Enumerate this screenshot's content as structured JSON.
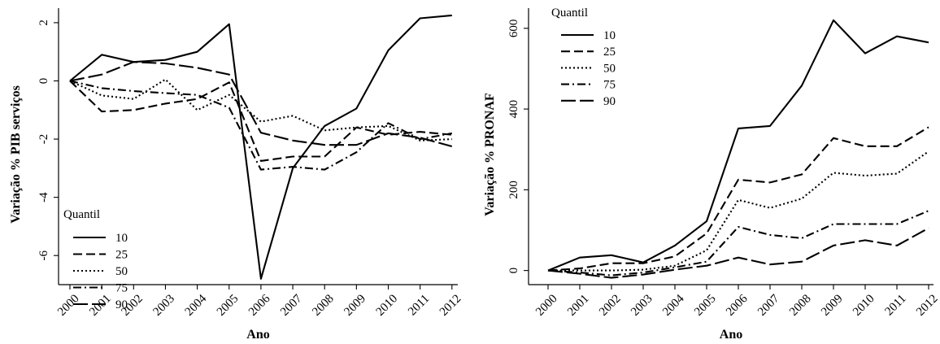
{
  "chart_data": [
    {
      "type": "line",
      "xlabel": "Ano",
      "ylabel": "Variação % PIB serviços",
      "x": [
        "2000",
        "2001",
        "2002",
        "2003",
        "2004",
        "2005",
        "2006",
        "2007",
        "2008",
        "2009",
        "2010",
        "2011",
        "2012"
      ],
      "yticks": [
        "-6",
        "-4",
        "-2",
        "0",
        "2"
      ],
      "ylim": [
        -7,
        2.5
      ],
      "legend": {
        "title": "Quantil",
        "position": "bottom-left"
      },
      "series": [
        {
          "name": "10",
          "style": "solid",
          "values": [
            0,
            0.9,
            0.65,
            0.72,
            1.0,
            1.95,
            -6.8,
            -3.0,
            -1.55,
            -0.95,
            1.05,
            2.15,
            2.25
          ]
        },
        {
          "name": "25",
          "style": "dash",
          "values": [
            0,
            -1.05,
            -1.0,
            -0.78,
            -0.62,
            -0.05,
            -2.75,
            -2.6,
            -2.6,
            -1.6,
            -1.85,
            -1.75,
            -1.85
          ]
        },
        {
          "name": "50",
          "style": "dot",
          "values": [
            0,
            -0.5,
            -0.62,
            0.05,
            -1.0,
            -0.48,
            -1.4,
            -1.2,
            -1.7,
            -1.6,
            -1.55,
            -2.05,
            -2.0
          ]
        },
        {
          "name": "75",
          "style": "dashdot",
          "values": [
            0,
            -0.25,
            -0.35,
            -0.42,
            -0.48,
            -0.92,
            -3.05,
            -2.95,
            -3.05,
            -2.45,
            -1.45,
            -2.0,
            -1.8
          ]
        },
        {
          "name": "90",
          "style": "longdash",
          "values": [
            0,
            0.22,
            0.65,
            0.6,
            0.45,
            0.22,
            -1.78,
            -2.05,
            -2.2,
            -2.2,
            -1.8,
            -1.95,
            -2.25
          ]
        }
      ]
    },
    {
      "type": "line",
      "xlabel": "Ano",
      "ylabel": "Variação % PRONAF",
      "x": [
        "2000",
        "2001",
        "2002",
        "2003",
        "2004",
        "2005",
        "2006",
        "2007",
        "2008",
        "2009",
        "2010",
        "2011",
        "2012"
      ],
      "yticks": [
        "0",
        "200",
        "400",
        "600"
      ],
      "ylim": [
        -35,
        650
      ],
      "legend": {
        "title": "Quantil",
        "position": "top-left"
      },
      "series": [
        {
          "name": "10",
          "style": "solid",
          "values": [
            0,
            32,
            38,
            20,
            62,
            122,
            352,
            358,
            458,
            620,
            538,
            580,
            565
          ]
        },
        {
          "name": "25",
          "style": "dash",
          "values": [
            0,
            5,
            18,
            18,
            35,
            92,
            225,
            218,
            238,
            328,
            308,
            308,
            355
          ]
        },
        {
          "name": "50",
          "style": "dot",
          "values": [
            0,
            0,
            0,
            2,
            12,
            50,
            175,
            155,
            178,
            242,
            235,
            240,
            295
          ]
        },
        {
          "name": "75",
          "style": "dashdot",
          "values": [
            0,
            -5,
            -12,
            -5,
            8,
            22,
            108,
            88,
            80,
            115,
            115,
            115,
            148
          ]
        },
        {
          "name": "90",
          "style": "longdash",
          "values": [
            0,
            -8,
            -18,
            -10,
            2,
            12,
            32,
            15,
            22,
            62,
            75,
            62,
            105
          ]
        }
      ]
    }
  ]
}
